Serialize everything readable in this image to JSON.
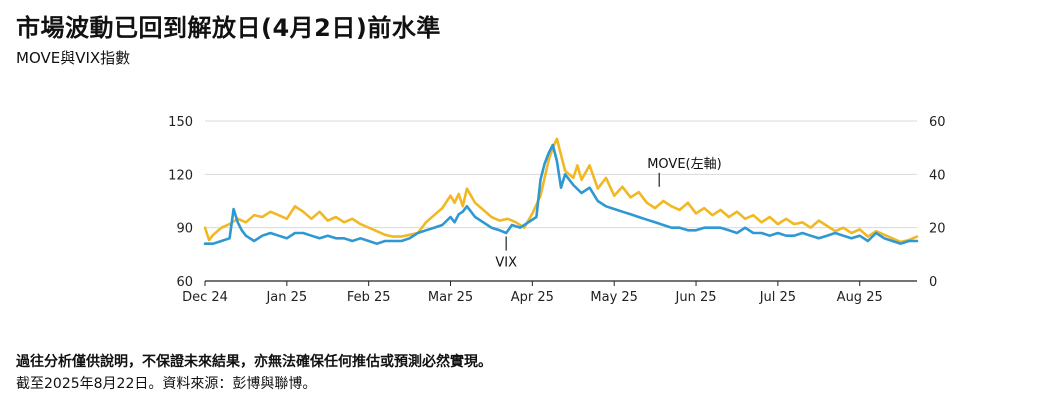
{
  "header": {
    "title": "市場波動已回到解放日(4月2日)前水準",
    "subtitle": "MOVE與VIX指數"
  },
  "footer": {
    "disclaimer": "過往分析僅供說明，不保證未來結果，亦無法確保任何推估或預測必然實現。",
    "source": "截至2025年8月22日。資料來源：彭博與聯博。"
  },
  "colors": {
    "move": "#F2B824",
    "vix": "#2E98D2",
    "grid": "#d9d9d9",
    "axis": "#222222"
  },
  "chart_data": {
    "type": "line",
    "grid": "horizontal",
    "legend": "none",
    "x_ticks": [
      "Dec 24",
      "Jan 25",
      "Feb 25",
      "Mar 25",
      "Apr 25",
      "May 25",
      "Jun 25",
      "Jul 25",
      "Aug 25"
    ],
    "x_range": [
      0,
      8.7
    ],
    "y_left": {
      "ticks": [
        60,
        90,
        120,
        150
      ],
      "range": [
        60,
        150
      ]
    },
    "y_right": {
      "ticks": [
        0,
        20,
        40,
        60
      ],
      "range": [
        0,
        60
      ]
    },
    "annotations": [
      {
        "text": "MOVE(左軸)",
        "series": "MOVE",
        "x": 5.55,
        "y": 113
      },
      {
        "text": "VIX",
        "series": "VIX",
        "x": 3.68,
        "y": 85
      }
    ],
    "series": [
      {
        "name": "MOVE",
        "axis": "left",
        "x": [
          0.0,
          0.05,
          0.1,
          0.2,
          0.3,
          0.4,
          0.5,
          0.6,
          0.7,
          0.8,
          0.9,
          1.0,
          1.1,
          1.2,
          1.3,
          1.4,
          1.5,
          1.6,
          1.7,
          1.8,
          1.9,
          2.0,
          2.1,
          2.2,
          2.3,
          2.4,
          2.5,
          2.6,
          2.7,
          2.8,
          2.9,
          3.0,
          3.05,
          3.1,
          3.15,
          3.2,
          3.3,
          3.4,
          3.5,
          3.6,
          3.7,
          3.8,
          3.9,
          4.0,
          4.1,
          4.2,
          4.25,
          4.3,
          4.4,
          4.5,
          4.55,
          4.6,
          4.7,
          4.8,
          4.9,
          5.0,
          5.1,
          5.2,
          5.3,
          5.4,
          5.5,
          5.6,
          5.7,
          5.8,
          5.9,
          6.0,
          6.1,
          6.2,
          6.3,
          6.4,
          6.5,
          6.6,
          6.7,
          6.8,
          6.9,
          7.0,
          7.1,
          7.2,
          7.3,
          7.4,
          7.5,
          7.6,
          7.7,
          7.8,
          7.9,
          8.0,
          8.1,
          8.2,
          8.3,
          8.4,
          8.5,
          8.6,
          8.7
        ],
        "values": [
          90,
          83,
          86,
          90,
          92,
          95,
          93,
          97,
          96,
          99,
          97,
          95,
          102,
          99,
          95,
          99,
          94,
          96,
          93,
          95,
          92,
          90,
          88,
          86,
          85,
          85,
          86,
          87,
          93,
          97,
          101,
          108,
          104,
          109,
          102,
          112,
          104,
          100,
          96,
          94,
          95,
          93,
          90,
          98,
          108,
          128,
          135,
          140,
          122,
          118,
          125,
          117,
          125,
          112,
          118,
          108,
          113,
          107,
          110,
          104,
          101,
          105,
          102,
          100,
          104,
          98,
          101,
          97,
          100,
          96,
          99,
          95,
          97,
          93,
          96,
          92,
          95,
          92,
          93,
          90,
          94,
          91,
          88,
          90,
          87,
          89,
          85,
          88,
          86,
          84,
          82,
          83,
          85
        ]
      },
      {
        "name": "VIX",
        "axis": "right",
        "x": [
          0.0,
          0.1,
          0.2,
          0.3,
          0.35,
          0.4,
          0.45,
          0.5,
          0.6,
          0.7,
          0.8,
          0.9,
          1.0,
          1.1,
          1.2,
          1.3,
          1.4,
          1.5,
          1.6,
          1.7,
          1.8,
          1.9,
          2.0,
          2.1,
          2.2,
          2.3,
          2.4,
          2.5,
          2.6,
          2.7,
          2.8,
          2.9,
          3.0,
          3.05,
          3.1,
          3.15,
          3.2,
          3.3,
          3.4,
          3.5,
          3.6,
          3.68,
          3.75,
          3.85,
          3.95,
          4.05,
          4.1,
          4.15,
          4.2,
          4.25,
          4.3,
          4.35,
          4.4,
          4.5,
          4.6,
          4.7,
          4.8,
          4.9,
          5.0,
          5.1,
          5.2,
          5.3,
          5.4,
          5.5,
          5.6,
          5.7,
          5.8,
          5.9,
          6.0,
          6.1,
          6.2,
          6.3,
          6.4,
          6.5,
          6.6,
          6.7,
          6.8,
          6.9,
          7.0,
          7.1,
          7.2,
          7.3,
          7.4,
          7.5,
          7.6,
          7.7,
          7.8,
          7.9,
          8.0,
          8.05,
          8.1,
          8.2,
          8.3,
          8.4,
          8.5,
          8.6,
          8.7
        ],
        "values": [
          14,
          14,
          15,
          16,
          27,
          22,
          19,
          17,
          15,
          17,
          18,
          17,
          16,
          18,
          18,
          17,
          16,
          17,
          16,
          16,
          15,
          16,
          15,
          14,
          15,
          15,
          15,
          16,
          18,
          19,
          20,
          21,
          24,
          22,
          25,
          26,
          28,
          24,
          22,
          20,
          19,
          18,
          21,
          20,
          22,
          24,
          38,
          44,
          48,
          51,
          45,
          35,
          40,
          36,
          33,
          35,
          30,
          28,
          27,
          26,
          25,
          24,
          23,
          22,
          21,
          20,
          20,
          19,
          19,
          20,
          20,
          20,
          19,
          18,
          20,
          18,
          18,
          17,
          18,
          17,
          17,
          18,
          17,
          16,
          17,
          18,
          17,
          16,
          17,
          16,
          15,
          18,
          16,
          15,
          14,
          15,
          15
        ]
      }
    ]
  }
}
